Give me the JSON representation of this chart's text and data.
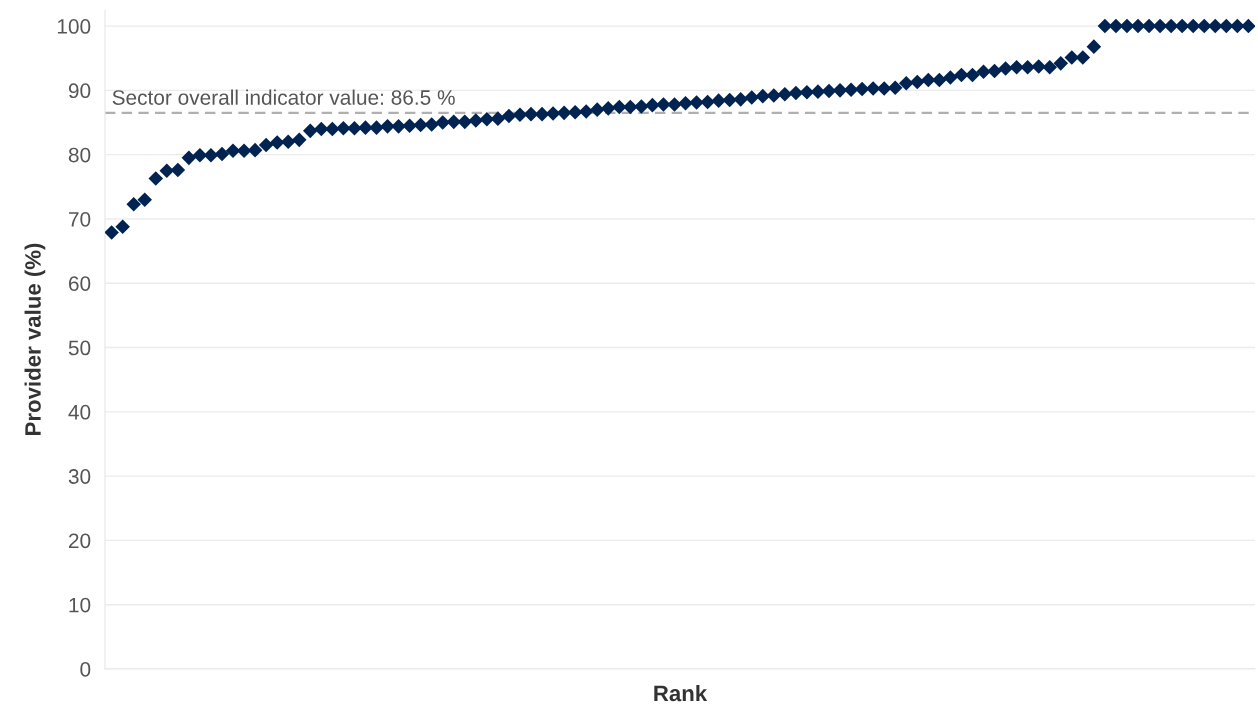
{
  "chart_data": {
    "type": "scatter",
    "xlabel": "Rank",
    "ylabel": "Provider value (%)",
    "categories": [
      null,
      null,
      null,
      null,
      null,
      null,
      null,
      null,
      null,
      null,
      null,
      null,
      null,
      null,
      null,
      null,
      null,
      null,
      null,
      null,
      null,
      null,
      null,
      null,
      null,
      null,
      null,
      null,
      null,
      null,
      null,
      null,
      null,
      null,
      null,
      null,
      null,
      null,
      null,
      null,
      null,
      null,
      null,
      null,
      null,
      null,
      null,
      null,
      null,
      null,
      null,
      null,
      null,
      null,
      null,
      null,
      null,
      null,
      null,
      null,
      null,
      null,
      null,
      null,
      null,
      null,
      null,
      null,
      null,
      null,
      null,
      null,
      null,
      null,
      null,
      null,
      null,
      null,
      null,
      null,
      null,
      null,
      null,
      null,
      null,
      null,
      null,
      null,
      null,
      null,
      null,
      null,
      null,
      null,
      null,
      null,
      null,
      null,
      null,
      null,
      null,
      null,
      null,
      null
    ],
    "series": [
      {
        "color": "#002351",
        "values": [
          67.9,
          68.8,
          72.3,
          73.0,
          76.3,
          77.5,
          77.6,
          79.5,
          79.9,
          79.9,
          80.1,
          80.6,
          80.6,
          80.7,
          81.5,
          81.9,
          82.0,
          82.3,
          83.7,
          84.0,
          84.0,
          84.1,
          84.1,
          84.2,
          84.2,
          84.4,
          84.4,
          84.5,
          84.6,
          84.7,
          85.0,
          85.1,
          85.1,
          85.3,
          85.5,
          85.6,
          86.0,
          86.2,
          86.3,
          86.3,
          86.4,
          86.5,
          86.6,
          86.7,
          87.0,
          87.2,
          87.4,
          87.4,
          87.5,
          87.7,
          87.8,
          87.8,
          88.0,
          88.1,
          88.2,
          88.4,
          88.5,
          88.6,
          88.9,
          89.1,
          89.2,
          89.4,
          89.6,
          89.7,
          89.8,
          89.9,
          90.0,
          90.1,
          90.2,
          90.3,
          90.3,
          90.4,
          91.1,
          91.3,
          91.6,
          91.6,
          92.0,
          92.4,
          92.4,
          92.9,
          93.0,
          93.4,
          93.6,
          93.6,
          93.7,
          93.6,
          94.2,
          95.1,
          95.1,
          96.8,
          100,
          100,
          100,
          100,
          100,
          100,
          100,
          100,
          100,
          100,
          100,
          100,
          100,
          100
        ]
      }
    ],
    "ylim": [
      0,
      102.5
    ],
    "yticks": [
      0,
      10,
      20,
      30,
      40,
      50,
      60,
      70,
      80,
      90,
      100
    ],
    "grid": "y",
    "marker": "diamond",
    "ref_lines": [
      {
        "axis": "y",
        "value": 86.5,
        "label": "Sector overall indicator value: 86.5 %",
        "color": "#b0b0b0",
        "line_style": "dashed"
      }
    ]
  }
}
